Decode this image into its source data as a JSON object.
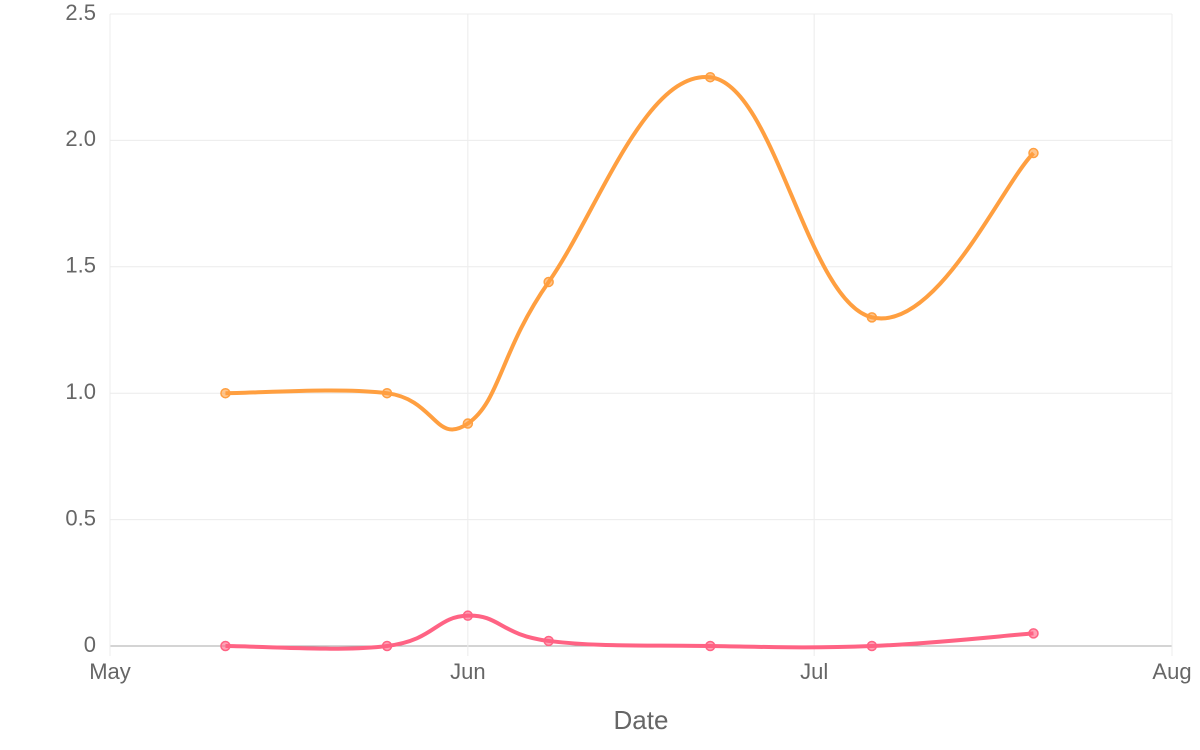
{
  "chart_data": {
    "type": "line",
    "x_label": "Date",
    "x": [
      10,
      24,
      31,
      38,
      52,
      66,
      80
    ],
    "xlim": [
      0,
      92
    ],
    "xticks": [
      {
        "value": 0,
        "label": "May"
      },
      {
        "value": 31,
        "label": "Jun"
      },
      {
        "value": 61,
        "label": "Jul"
      },
      {
        "value": 92,
        "label": "Aug"
      }
    ],
    "ylim": [
      0,
      2.5
    ],
    "yticks": [
      0,
      0.5,
      {
        "value": 1,
        "label": "1.0"
      },
      1.5,
      {
        "value": 2,
        "label": "2.0"
      },
      2.5
    ],
    "grid": true,
    "series": [
      {
        "color": "#ff9f40",
        "values": [
          1.0,
          1.0,
          0.88,
          1.44,
          2.25,
          1.3,
          1.95
        ]
      },
      {
        "color": "#ff6384",
        "values": [
          0,
          0,
          0.12,
          0.02,
          0,
          0,
          0.05
        ]
      }
    ]
  }
}
